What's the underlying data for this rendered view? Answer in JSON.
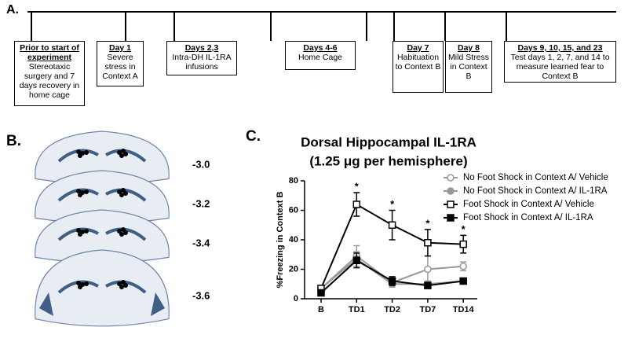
{
  "panel_a": {
    "label": "A.",
    "steps": [
      {
        "title": "Prior to start of experiment",
        "text": "Stereotaxic surgery and 7 days recovery in home cage"
      },
      {
        "title": "Day 1",
        "text": "Severe stress in Context A"
      },
      {
        "title": "Days 2,3",
        "text": "Intra-DH IL-1RA infusions"
      },
      {
        "title": "Days 4-6",
        "text": "Home Cage"
      },
      {
        "title": "Day 7",
        "text": "Habituation to Context B"
      },
      {
        "title": "Day 8",
        "text": "Mild Stress in Context B"
      },
      {
        "title": "Days 9, 10, 15, and 23",
        "text": "Test days 1, 2, 7, and 14 to measure learned fear to Context B"
      }
    ]
  },
  "panel_b": {
    "label": "B.",
    "sections": [
      "-3.0",
      "-3.2",
      "-3.4",
      "-3.6"
    ]
  },
  "panel_c_label": "C.",
  "chart_data": {
    "type": "line",
    "title": "Dorsal Hippocampal IL-1RA",
    "subtitle": "(1.25 μg per hemisphere)",
    "y_label": "%Freezing in Context  B",
    "categories": [
      "B",
      "TD1",
      "TD2",
      "TD7",
      "TD14"
    ],
    "ylim": [
      0,
      80
    ],
    "yticks": [
      0,
      20,
      40,
      60,
      80
    ],
    "significance_labels": [
      null,
      "*",
      "*",
      "*",
      "*"
    ],
    "series": [
      {
        "name": "No Foot Shock in Context A/ Vehicle",
        "color": "#999999",
        "marker": "circle",
        "filled": false,
        "values": [
          7,
          29,
          11,
          20,
          22
        ],
        "errors": [
          1,
          7,
          3,
          9,
          3
        ]
      },
      {
        "name": "No Foot Shock in  Context A/ IL-1RA",
        "color": "#999999",
        "marker": "circle",
        "filled": true,
        "values": [
          7,
          27,
          10,
          10,
          12
        ],
        "errors": [
          1,
          5,
          2,
          2,
          1
        ]
      },
      {
        "name": "Foot Shock in Context  A/ Vehicle",
        "color": "#000000",
        "marker": "square",
        "filled": false,
        "values": [
          7,
          64,
          50,
          38,
          37
        ],
        "errors": [
          1,
          8,
          10,
          9,
          6
        ]
      },
      {
        "name": "Foot Shock in Context  A/ IL-1RA",
        "color": "#000000",
        "marker": "square",
        "filled": true,
        "values": [
          4,
          26,
          12,
          9,
          12
        ],
        "errors": [
          1,
          5,
          3,
          2,
          2
        ]
      }
    ]
  }
}
